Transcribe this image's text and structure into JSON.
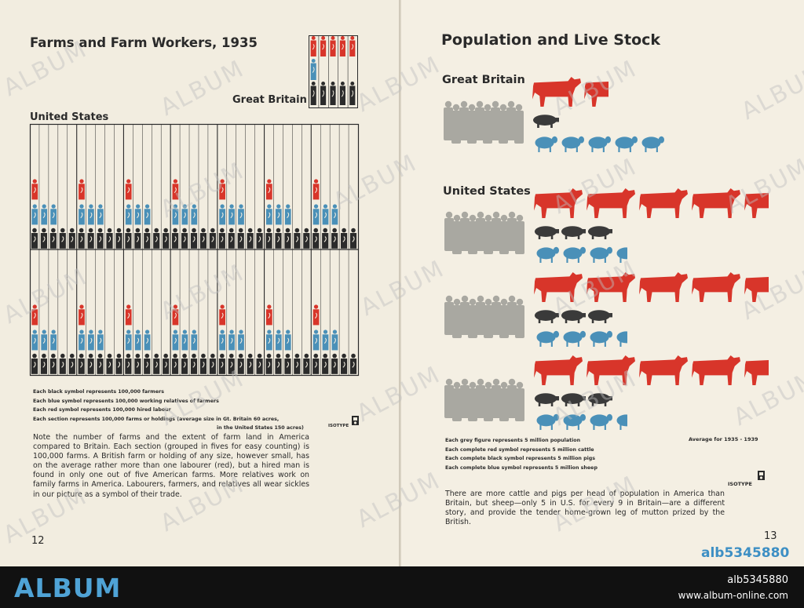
{
  "left": {
    "title": "Farms and Farm Workers, 1935",
    "gb_label": "Great Britain",
    "us_label": "United States",
    "legend": [
      "Each black symbol represents 100,000 farmers",
      "Each blue symbol represents 100,000 working relatives of farmers",
      "Each red symbol represents 100,000 hired labour",
      "Each section represents 100,000 farms or holdings (average size in Gt. Britain 60 acres,",
      "in the United States 150 acres)"
    ],
    "isotype": "ISOTYPE",
    "body": "Note the number of farms and the extent of farm land in America compared to Britain. Each section (grouped in fives for easy counting) is 100,000 farms. A British farm or holding of any size, however small, has on the average rather more than one labourer (red), but a hired man is found in only one out of five American farms. More relatives work on family farms in America. Labourers, farmers, and relatives all wear sickles in our picture as a symbol of their trade.",
    "page_number": "12"
  },
  "right": {
    "title": "Population and Live Stock",
    "gb_label": "Great Britain",
    "us_label": "United States",
    "legend": [
      "Each grey figure represents 5 million population",
      "Each complete red symbol represents 5 million cattle",
      "Each complete black symbol represents 5 million pigs",
      "Each complete blue symbol represents 5 million sheep"
    ],
    "average": "Average for 1935 - 1939",
    "isotype": "ISOTYPE",
    "body": "There are more cattle and pigs per head of population in America than Britain, but sheep—only 5 in U.S. for every 9 in Britain—are a different story, and provide the tender home-grown leg of mutton prized by the British.",
    "page_number": "13"
  },
  "chart_data": [
    {
      "type": "isotype",
      "title": "Farms and Farm Workers, 1935",
      "unit": "100,000",
      "symbols_per_farm_section": {
        "farmers": 1,
        "relatives_of_farmers": 0.5,
        "hired_labour": 0.2
      },
      "great_britain": {
        "sections": 5,
        "farmers": 5,
        "relatives": 1,
        "hired_labour": 5
      },
      "united_states": {
        "sections": 70,
        "farmers": 70,
        "relatives": 42,
        "hired_labour": 14
      },
      "colors": {
        "farmers": "#2b2b2b",
        "relatives": "#4a90b8",
        "hired_labour": "#d8352a"
      }
    },
    {
      "type": "isotype",
      "title": "Population and Live Stock",
      "period": "1935 - 1939",
      "unit_millions": 5,
      "great_britain": {
        "population_figures": 5,
        "cattle_symbols": 1.5,
        "pig_symbols": 0.5,
        "sheep_symbols": 5
      },
      "united_states_rows": [
        {
          "population_figures": 5,
          "cattle_symbols": 4.5,
          "pig_symbols": 3,
          "sheep_symbols": 3.5
        },
        {
          "population_figures": 5,
          "cattle_symbols": 4.5,
          "pig_symbols": 3,
          "sheep_symbols": 3.5
        },
        {
          "population_figures": 5,
          "cattle_symbols": 4.5,
          "pig_symbols": 3,
          "sheep_symbols": 3.5
        }
      ],
      "colors": {
        "population": "#a9a8a1",
        "cattle": "#d8352a",
        "pigs": "#3a3a3a",
        "sheep": "#4a90b8"
      }
    }
  ],
  "watermark": "ALBUM",
  "stock_id": "alb5345880",
  "footer": {
    "brand": "ALBUM",
    "id": "alb5345880",
    "site": "www.album-online.com"
  }
}
